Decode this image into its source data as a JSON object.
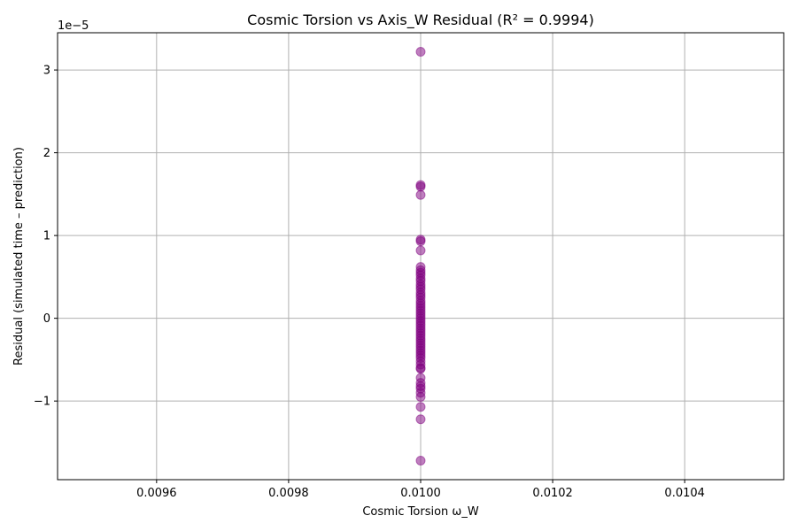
{
  "chart_data": {
    "type": "scatter",
    "title": "Cosmic Torsion vs Axis_W Residual (R² = 0.9994)",
    "xlabel": "Cosmic Torsion ω_W",
    "ylabel": "Residual (simulated time – prediction)",
    "y_offset_label": "1e−5",
    "xlim": [
      0.00945,
      0.01055
    ],
    "ylim": [
      -1.95,
      3.45
    ],
    "x_ticks": [
      0.0096,
      0.0098,
      0.01,
      0.0102,
      0.0104
    ],
    "x_tick_labels": [
      "0.0096",
      "0.0098",
      "0.0100",
      "0.0102",
      "0.0104"
    ],
    "y_ticks": [
      -1,
      0,
      1,
      2,
      3
    ],
    "y_tick_labels": [
      "−1",
      "0",
      "1",
      "2",
      "3"
    ],
    "grid": true,
    "marker_color": "#800080",
    "marker_alpha": 0.5,
    "points": [
      {
        "x": 0.01,
        "y": 3.22
      },
      {
        "x": 0.01,
        "y": 1.61
      },
      {
        "x": 0.01,
        "y": 1.59
      },
      {
        "x": 0.01,
        "y": 1.49
      },
      {
        "x": 0.01,
        "y": 0.95
      },
      {
        "x": 0.01,
        "y": 0.93
      },
      {
        "x": 0.01,
        "y": 0.82
      },
      {
        "x": 0.01,
        "y": 0.62
      },
      {
        "x": 0.01,
        "y": 0.58
      },
      {
        "x": 0.01,
        "y": 0.55
      },
      {
        "x": 0.01,
        "y": 0.52
      },
      {
        "x": 0.01,
        "y": 0.48
      },
      {
        "x": 0.01,
        "y": 0.45
      },
      {
        "x": 0.01,
        "y": 0.41
      },
      {
        "x": 0.01,
        "y": 0.38
      },
      {
        "x": 0.01,
        "y": 0.35
      },
      {
        "x": 0.01,
        "y": 0.31
      },
      {
        "x": 0.01,
        "y": 0.28
      },
      {
        "x": 0.01,
        "y": 0.25
      },
      {
        "x": 0.01,
        "y": 0.21
      },
      {
        "x": 0.01,
        "y": 0.18
      },
      {
        "x": 0.01,
        "y": 0.15
      },
      {
        "x": 0.01,
        "y": 0.12
      },
      {
        "x": 0.01,
        "y": 0.09
      },
      {
        "x": 0.01,
        "y": 0.06
      },
      {
        "x": 0.01,
        "y": 0.03
      },
      {
        "x": 0.01,
        "y": 0.0
      },
      {
        "x": 0.01,
        "y": -0.03
      },
      {
        "x": 0.01,
        "y": -0.06
      },
      {
        "x": 0.01,
        "y": -0.09
      },
      {
        "x": 0.01,
        "y": -0.12
      },
      {
        "x": 0.01,
        "y": -0.15
      },
      {
        "x": 0.01,
        "y": -0.18
      },
      {
        "x": 0.01,
        "y": -0.21
      },
      {
        "x": 0.01,
        "y": -0.24
      },
      {
        "x": 0.01,
        "y": -0.27
      },
      {
        "x": 0.01,
        "y": -0.3
      },
      {
        "x": 0.01,
        "y": -0.33
      },
      {
        "x": 0.01,
        "y": -0.36
      },
      {
        "x": 0.01,
        "y": -0.39
      },
      {
        "x": 0.01,
        "y": -0.42
      },
      {
        "x": 0.01,
        "y": -0.45
      },
      {
        "x": 0.01,
        "y": -0.48
      },
      {
        "x": 0.01,
        "y": -0.52
      },
      {
        "x": 0.01,
        "y": -0.56
      },
      {
        "x": 0.01,
        "y": -0.6
      },
      {
        "x": 0.01,
        "y": -0.61
      },
      {
        "x": 0.01,
        "y": -0.72
      },
      {
        "x": 0.01,
        "y": -0.78
      },
      {
        "x": 0.01,
        "y": -0.82
      },
      {
        "x": 0.01,
        "y": -0.85
      },
      {
        "x": 0.01,
        "y": -0.9
      },
      {
        "x": 0.01,
        "y": -0.95
      },
      {
        "x": 0.01,
        "y": -1.07
      },
      {
        "x": 0.01,
        "y": -1.22
      },
      {
        "x": 0.01,
        "y": -1.72
      }
    ]
  }
}
